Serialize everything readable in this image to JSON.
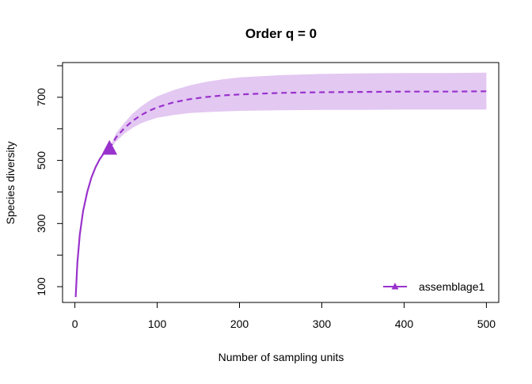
{
  "chart_data": {
    "type": "line",
    "title": "Order q = 0",
    "xlabel": "Number of sampling units",
    "ylabel": "Species diversity",
    "xlim": [
      -15,
      515
    ],
    "ylim": [
      50,
      810
    ],
    "xticks": [
      0,
      100,
      200,
      300,
      400,
      500
    ],
    "yticks": [
      100,
      200,
      300,
      400,
      500,
      600,
      700,
      800
    ],
    "ytick_labels": [
      "100",
      "",
      "300",
      "",
      "500",
      "",
      "700",
      ""
    ],
    "grid": false,
    "legend_position": "bottom-right",
    "series": [
      {
        "name": "assemblage1",
        "color": "#9932CC",
        "band_color": "#E3C8F2",
        "marker": "triangle",
        "reference_point": {
          "x": 42,
          "y": 537
        },
        "interpolation": {
          "x": [
            1,
            3,
            6,
            10,
            15,
            20,
            25,
            30,
            35,
            42
          ],
          "y": [
            67,
            175,
            265,
            340,
            400,
            445,
            478,
            503,
            522,
            537
          ]
        },
        "extrapolation": {
          "x": [
            42,
            50,
            60,
            70,
            80,
            90,
            100,
            120,
            140,
            160,
            180,
            200,
            250,
            300,
            350,
            400,
            450,
            500
          ],
          "y": [
            537,
            573,
            602,
            625,
            643,
            657,
            668,
            684,
            694,
            701,
            706,
            709,
            714,
            716,
            717,
            718,
            718,
            719
          ]
        },
        "ci_lower": {
          "x": [
            42,
            50,
            60,
            70,
            80,
            90,
            100,
            120,
            140,
            160,
            180,
            200,
            250,
            300,
            350,
            400,
            450,
            500
          ],
          "y": [
            537,
            560,
            585,
            603,
            617,
            627,
            635,
            644,
            650,
            653,
            655,
            657,
            659,
            660,
            660,
            661,
            661,
            661
          ]
        },
        "ci_upper": {
          "x": [
            42,
            50,
            60,
            70,
            80,
            90,
            100,
            120,
            140,
            160,
            180,
            200,
            250,
            300,
            350,
            400,
            450,
            500
          ],
          "y": [
            537,
            586,
            619,
            648,
            670,
            688,
            703,
            723,
            738,
            749,
            757,
            763,
            770,
            774,
            776,
            777,
            777,
            778
          ]
        },
        "ci_interp_lower": {
          "x": [
            1,
            3,
            6,
            10,
            15,
            20,
            25,
            30,
            35,
            42
          ],
          "y": [
            67,
            170,
            259,
            333,
            393,
            438,
            472,
            498,
            518,
            537
          ]
        },
        "ci_interp_upper": {
          "x": [
            1,
            3,
            6,
            10,
            15,
            20,
            25,
            30,
            35,
            42
          ],
          "y": [
            67,
            180,
            271,
            347,
            407,
            452,
            484,
            508,
            526,
            537
          ]
        }
      }
    ]
  }
}
